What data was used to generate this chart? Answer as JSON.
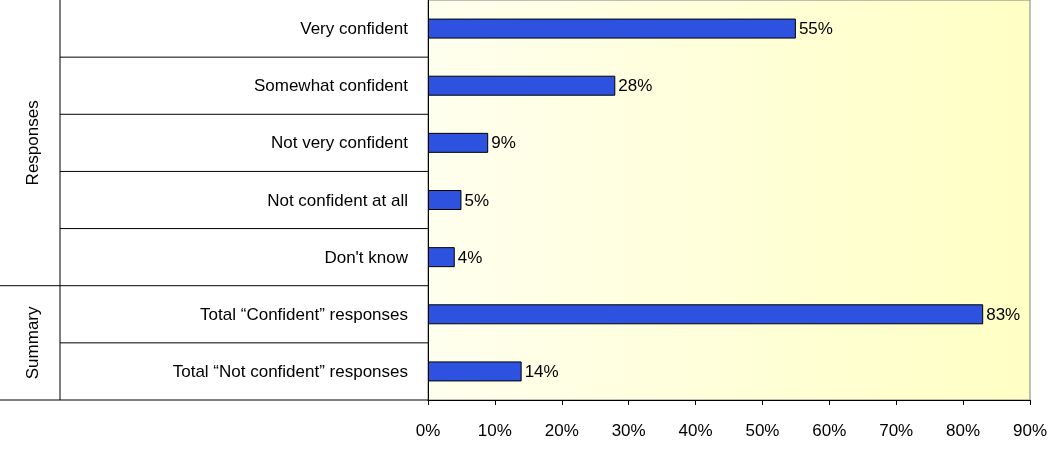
{
  "chart_data": {
    "type": "bar",
    "orientation": "horizontal",
    "categories": [
      "Very confident",
      "Somewhat confident",
      "Not very confident",
      "Not confident at all",
      "Don't know",
      "Total “Confident” responses",
      "Total “Not confident” responses"
    ],
    "values": [
      55,
      28,
      9,
      5,
      4,
      83,
      14
    ],
    "value_labels": [
      "55%",
      "28%",
      "9%",
      "5%",
      "4%",
      "83%",
      "14%"
    ],
    "color": "#2e52e0",
    "xlim": [
      0,
      90
    ],
    "xticks": [
      {
        "value": 0,
        "label": "0%"
      },
      {
        "value": 10,
        "label": "10%"
      },
      {
        "value": 20,
        "label": "20%"
      },
      {
        "value": 30,
        "label": "30%"
      },
      {
        "value": 40,
        "label": "40%"
      },
      {
        "value": 50,
        "label": "50%"
      },
      {
        "value": 60,
        "label": "60%"
      },
      {
        "value": 70,
        "label": "70%"
      },
      {
        "value": 80,
        "label": "80%"
      },
      {
        "value": 90,
        "label": "90%"
      }
    ],
    "annotations": [
      "Responses",
      "Summary"
    ],
    "grid": false
  }
}
